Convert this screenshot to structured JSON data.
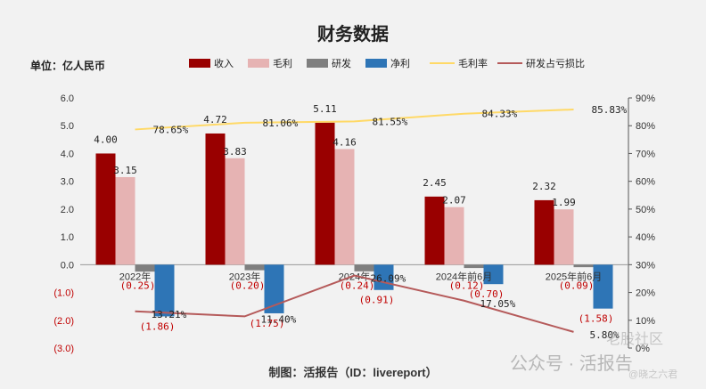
{
  "title": "财务数据",
  "unit_label": "单位：亿人民币",
  "footer": "制图：活报告（ID：livereport）",
  "watermark": "公众号 · 活报告",
  "watermark2": "老股社区",
  "watermark3": "@晓之六君",
  "colors": {
    "revenue": "#990000",
    "gross_profit": "#e6b3b3",
    "rnd": "#7f7f7f",
    "net_profit": "#2e75b6",
    "gross_margin": "#ffd966",
    "rnd_ratio": "#b55a5a"
  },
  "chart_data": {
    "type": "bar",
    "title": "财务数据",
    "categories": [
      "2022年",
      "2023年",
      "2024年",
      "2024年前6月",
      "2025年前6月"
    ],
    "series": [
      {
        "name": "收入",
        "type": "bar",
        "axis": "left",
        "values": [
          4.0,
          4.72,
          5.11,
          2.45,
          2.32
        ]
      },
      {
        "name": "毛利",
        "type": "bar",
        "axis": "left",
        "values": [
          3.15,
          3.83,
          4.16,
          2.07,
          1.99
        ]
      },
      {
        "name": "研发",
        "type": "bar",
        "axis": "left",
        "values": [
          -0.25,
          -0.2,
          -0.24,
          -0.12,
          -0.09
        ]
      },
      {
        "name": "净利",
        "type": "bar",
        "axis": "left",
        "values": [
          -1.86,
          -1.75,
          -0.91,
          -0.7,
          -1.58
        ]
      },
      {
        "name": "毛利率",
        "type": "line",
        "axis": "right",
        "values": [
          78.65,
          81.06,
          81.55,
          84.33,
          85.83
        ]
      },
      {
        "name": "研发占亏损比",
        "type": "line",
        "axis": "right",
        "values": [
          13.21,
          11.4,
          26.09,
          17.05,
          5.8
        ]
      }
    ],
    "value_labels": [
      [
        "4.00",
        "4.72",
        "5.11",
        "2.45",
        "2.32"
      ],
      [
        "3.15",
        "3.83",
        "4.16",
        "2.07",
        "1.99"
      ],
      [
        "(0.25)",
        "(0.20)",
        "(0.24)",
        "(0.12)",
        "(0.09)"
      ],
      [
        "(1.86)",
        "(1.75)",
        "(0.91)",
        "(0.70)",
        "(1.58)"
      ],
      [
        "78.65%",
        "81.06%",
        "81.55%",
        "84.33%",
        "85.83%"
      ],
      [
        "13.21%",
        "11.40%",
        "26.09%",
        "17.05%",
        "5.80%"
      ]
    ],
    "y_left_ticks": [
      "6.0",
      "5.0",
      "4.0",
      "3.0",
      "2.0",
      "1.0",
      "0.0",
      "(1.0)",
      "(2.0)",
      "(3.0)"
    ],
    "y_right_ticks": [
      "90%",
      "80%",
      "70%",
      "60%",
      "50%",
      "40%",
      "30%",
      "20%",
      "10%",
      "0%"
    ],
    "ylim_left": [
      -3,
      6
    ],
    "ylim_right": [
      0,
      90
    ],
    "legend_position": "top",
    "grid": false
  }
}
